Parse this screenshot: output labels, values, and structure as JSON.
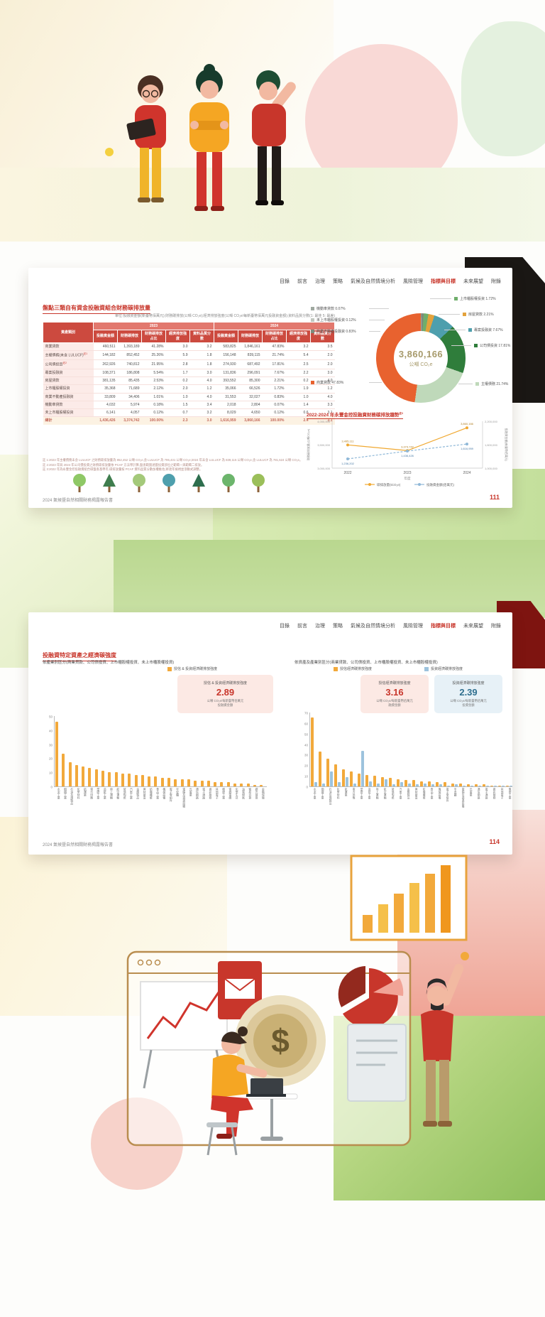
{
  "accent": {
    "red": "#c8362b",
    "orange_bar": "#f2a93b",
    "blue_bar": "#9dc3dd"
  },
  "report": {
    "nav": [
      "目錄",
      "前言",
      "治理",
      "策略",
      "氣候及自然情境分析",
      "風險管理",
      "指標與目標",
      "未來展望",
      "附錄"
    ],
    "nav_active": "指標與目標",
    "footer_text": "2024 氣候暨自然相關財務揭露報告書",
    "page1": {
      "page_number": "111",
      "title": "盤點三類自有資金投融資組合財務碳排放量",
      "unit_note": "單位:投融資金額(新臺幣佰萬元);財務碳排放(公噸 CO₂e);經濟排放強度(公噸 CO₂e/每新臺幣佰萬元投融資金額);資料品質分數(1: 最佳 5: 最差)",
      "table": {
        "row_header": "資產類別",
        "years": [
          "2023",
          "2024"
        ],
        "columns": [
          "投融資金額",
          "財務碳排放",
          "財務碳排放占比",
          "經濟排放強度",
          "資料品質分數"
        ],
        "rows": [
          {
            "label": "商業貸款",
            "sup": "",
            "v": [
              "460,511",
              "1,393,189",
              "41.28%",
              "3.0",
              "3.2",
              "583,825",
              "1,846,161",
              "47.83%",
              "3.2",
              "3.5"
            ]
          },
          {
            "label": "主權債務(未含 LULUCF)",
            "sup": "註1",
            "v": [
              "144,182",
              "852,452",
              "25.26%",
              "5.9",
              "1.8",
              "156,148",
              "839,115",
              "21.74%",
              "5.4",
              "2.0"
            ]
          },
          {
            "label": "公司債投資",
            "sup": "註2",
            "v": [
              "262,926",
              "740,812",
              "21.95%",
              "2.8",
              "1.8",
              "274,930",
              "687,492",
              "17.81%",
              "2.5",
              "2.0"
            ]
          },
          {
            "label": "專案投融資",
            "sup": "",
            "v": [
              "108,371",
              "186,808",
              "5.54%",
              "1.7",
              "3.0",
              "131,836",
              "296,091",
              "7.67%",
              "2.2",
              "3.0"
            ]
          },
          {
            "label": "房屋貸款",
            "sup": "",
            "v": [
              "381,135",
              "85,435",
              "2.53%",
              "0.2",
              "4.0",
              "393,552",
              "85,300",
              "2.21%",
              "0.2",
              "4.0"
            ]
          },
          {
            "label": "上市櫃股權投資",
            "sup": "",
            "v": [
              "35,368",
              "71,689",
              "2.12%",
              "2.0",
              "1.2",
              "35,066",
              "66,526",
              "1.72%",
              "1.9",
              "1.2"
            ]
          },
          {
            "label": "商業不動產投融資",
            "sup": "",
            "v": [
              "33,809",
              "34,406",
              "1.01%",
              "1.0",
              "4.0",
              "31,553",
              "32,027",
              "0.83%",
              "1.0",
              "4.0"
            ]
          },
          {
            "label": "機動車貸款",
            "sup": "",
            "v": [
              "4,032",
              "5,974",
              "0.18%",
              "1.5",
              "3.4",
              "2,018",
              "2,804",
              "0.07%",
              "1.4",
              "3.3"
            ]
          },
          {
            "label": "未上市櫃股權投資",
            "sup": "",
            "v": [
              "6,141",
              "4,057",
              "0.12%",
              "0.7",
              "3.2",
              "8,029",
              "4,650",
              "0.12%",
              "0.6",
              "3.1"
            ]
          }
        ],
        "total": {
          "label": "總計",
          "v": [
            "1,436,426",
            "3,374,742",
            "100.00%",
            "2.3",
            "3.0",
            "1,616,959",
            "3,860,166",
            "100.00%",
            "2.4",
            "3.1"
          ]
        }
      },
      "donut": {
        "center_value": "3,860,166",
        "center_unit": "公噸 CO₂e",
        "slices": [
          {
            "label": "機動車貸款",
            "pct": 0.07,
            "pct_text": "0.07%",
            "color": "#9fa8a0"
          },
          {
            "label": "未上市櫃股權投資",
            "pct": 0.12,
            "pct_text": "0.12%",
            "color": "#c2c8c0"
          },
          {
            "label": "商業不動產投融資",
            "pct": 0.83,
            "pct_text": "0.83%",
            "color": "#7c8a7c"
          },
          {
            "label": "上市櫃股權投資",
            "pct": 1.72,
            "pct_text": "1.72%",
            "color": "#6fae6b"
          },
          {
            "label": "房屋貸款",
            "pct": 2.21,
            "pct_text": "2.21%",
            "color": "#e3a23c"
          },
          {
            "label": "專案投融資",
            "pct": 7.67,
            "pct_text": "7.67%",
            "color": "#4e9fad"
          },
          {
            "label": "公司債投資",
            "pct": 17.81,
            "pct_text": "17.81%",
            "color": "#2f7d3b"
          },
          {
            "label": "主權債務",
            "pct": 21.74,
            "pct_text": "21.74%",
            "color": "#bfd9ba"
          },
          {
            "label": "商業貸款",
            "pct": 47.83,
            "pct_text": "47.83%",
            "color": "#e8622f"
          }
        ]
      },
      "trend": {
        "title": "2022-2024 年永豐金控投融資財務碳排放趨勢",
        "title_sup": "註3",
        "years": [
          "2022",
          "2023",
          "2024"
        ],
        "emissions": [
          3495111,
          3374742,
          3860166
        ],
        "emissions_labels": [
          "3,495,111",
          "3,374,742",
          "3,860,166"
        ],
        "amounts": [
          1236202,
          1436426,
          1616959
        ],
        "amounts_labels": [
          "1,236,202",
          "1,436,426",
          "1,616,959"
        ],
        "yticks_left": [
          "4,000,000",
          "3,500,000",
          "3,000,000"
        ],
        "yticks_right": [
          "2,200,000",
          "1,600,000",
          "1,000,000"
        ],
        "ylabel_left": "財務碳排放量(公噸CO₂e)",
        "ylabel_right": "投融資金額(新臺幣佰萬元)",
        "xlabel": "年度",
        "legend": [
          {
            "label": "碳排放量(tCO₂e)",
            "color": "#f0a830"
          },
          {
            "label": "投融資金額(佰萬元)",
            "color": "#8fb8d8"
          }
        ]
      },
      "footnotes": [
        "註 1:2023 年主權債務未含 LULUCF 之財務碳排放量為 852,452 公噸 CO₂e,含 LULUCF 為 795,431 公噸 CO₂e;2024 年未含 LULUCF 為 839,115 公噸 CO₂e,含 LULUCF 為 781,624 公噸 CO₂e。",
        "註 2:2023 年與 2024 年公司債投資之財務碳排放量依 PCAF 方法學計算,盤查範圍涵蓋投資部位之範疇一與範疇二排放。",
        "註 3:2022 年為永豐金控投融資組合碳盤查基準年,碳排放量按 PCAF 資料品質分數加權推估,將逐年檢視並滾動式調整。"
      ],
      "tree_colors": [
        "#8fc866",
        "#3f7d4e",
        "#a4c97a",
        "#4e9fad",
        "#2e6e4e",
        "#6cb56c",
        "#9bbf5a"
      ]
    },
    "page2": {
      "page_number": "114",
      "title": "投融資特定資產之經濟碳強度",
      "left_chart": {
        "caption": "依產業別區分(商業貸款、公司債投資、上市櫃股權投資、未上市櫃股權投資)",
        "legend": "授信 & 投資經濟碳排放強度",
        "card": {
          "title": "授信 & 投資經濟碳排放強度",
          "value": "2.89",
          "unit": "公噸 CO₂e/每新臺幣佰萬元\n投融資金額"
        },
        "yticks": [
          50,
          40,
          30,
          20,
          10,
          0
        ]
      },
      "right_chart": {
        "caption": "依資產及產業別區分(商業貸款、公司債投資、上市櫃股權投資、未上市櫃股權投資)",
        "legend1": "授信經濟碳排放強度",
        "legend2": "投資經濟碳排放強度",
        "card1": {
          "title": "授信經濟碳排放強度",
          "value": "3.16",
          "unit": "公噸 CO₂e/每新臺幣佰萬元\n融資金額"
        },
        "card2": {
          "title": "投資經濟碳排放強度",
          "value": "2.39",
          "unit": "公噸 CO₂e/每新臺幣佰萬元\n投資金額"
        },
        "yticks": [
          70,
          60,
          50,
          40,
          30,
          20,
          10,
          0
        ]
      }
    }
  },
  "chart_data": [
    {
      "type": "pie",
      "title": "2024 投融資組合財務碳排放占比",
      "labels": [
        "機動車貸款",
        "未上市櫃股權投資",
        "商業不動產投融資",
        "上市櫃股權投資",
        "房屋貸款",
        "專案投融資",
        "公司債投資",
        "主權債務",
        "商業貸款"
      ],
      "values": [
        0.07,
        0.12,
        0.83,
        1.72,
        2.21,
        7.67,
        17.81,
        21.74,
        47.83
      ],
      "center": "3,860,166 公噸 CO₂e",
      "legend_position": "around"
    },
    {
      "type": "line",
      "title": "2022-2024 年永豐金控投融資財務碳排放趨勢",
      "x": [
        "2022",
        "2023",
        "2024"
      ],
      "series": [
        {
          "name": "碳排放量(tCO₂e)",
          "values": [
            3495111,
            3374742,
            3860166
          ]
        },
        {
          "name": "投融資金額(佰萬元)",
          "values": [
            1236202,
            1436426,
            1616959
          ]
        }
      ],
      "xlabel": "年度",
      "ylabel": "財務碳排放量(公噸CO₂e)",
      "ylabel_right": "投融資金額(新臺幣佰萬元)",
      "grid": false,
      "legend_position": "bottom"
    },
    {
      "type": "bar",
      "title": "授信 & 投資經濟碳排放強度(依產業別區分)",
      "ylim": [
        0,
        50
      ],
      "categories": [
        "水泥工業",
        "鋼鐵工業",
        "石油及煤製品",
        "化學材料",
        "航運業",
        "電力供應",
        "塑膠工業",
        "造紙工業",
        "陸上運輸",
        "航空運輸",
        "玻璃陶瓷",
        "汽車工業",
        "金屬製品",
        "建材營造",
        "紡織纖維",
        "食品工業",
        "機械設備",
        "電子零組件",
        "半導體",
        "電腦及週邊設備",
        "光電業",
        "通信網路",
        "電子通路",
        "資訊服務",
        "其他電子",
        "橡膠工業",
        "電器電纜",
        "化學生技",
        "油電燃氣",
        "貿易百貨",
        "觀光餐旅",
        "金融保險"
      ],
      "values": [
        46,
        23,
        17,
        15,
        14,
        13,
        12,
        11,
        10,
        10,
        9,
        9,
        8,
        8,
        7,
        7,
        6,
        6,
        5,
        5,
        5,
        4,
        4,
        4,
        3,
        3,
        3,
        2,
        2,
        2,
        1,
        1
      ]
    },
    {
      "type": "bar",
      "title": "授信/投資經濟碳排放強度(依資產及產業別區分)",
      "ylim": [
        0,
        70
      ],
      "categories": [
        "水泥工業",
        "鋼鐵工業",
        "石油及煤製品",
        "化學材料",
        "航運業",
        "電力供應",
        "塑膠工業",
        "造紙工業",
        "陸上運輸",
        "航空運輸",
        "玻璃陶瓷",
        "汽車工業",
        "金屬製品",
        "建材營造",
        "紡織纖維",
        "食品工業",
        "機械設備",
        "電子零組件",
        "半導體",
        "電腦及週邊設備",
        "光電業",
        "通信網路",
        "電子通路",
        "資訊服務",
        "其他電子",
        "橡膠工業"
      ],
      "series": [
        {
          "name": "授信經濟碳排放強度",
          "values": [
            65,
            33,
            26,
            21,
            16,
            14,
            12,
            11,
            10,
            9,
            8,
            7,
            6,
            6,
            5,
            5,
            4,
            4,
            3,
            3,
            2,
            2,
            2,
            1,
            1,
            1
          ]
        },
        {
          "name": "投資經濟碳排放強度",
          "values": [
            4,
            3,
            14,
            4,
            9,
            3,
            34,
            5,
            3,
            7,
            2,
            4,
            3,
            2,
            3,
            2,
            2,
            1,
            2,
            1,
            1,
            1,
            1,
            1,
            0.5,
            0.5
          ]
        }
      ]
    }
  ]
}
